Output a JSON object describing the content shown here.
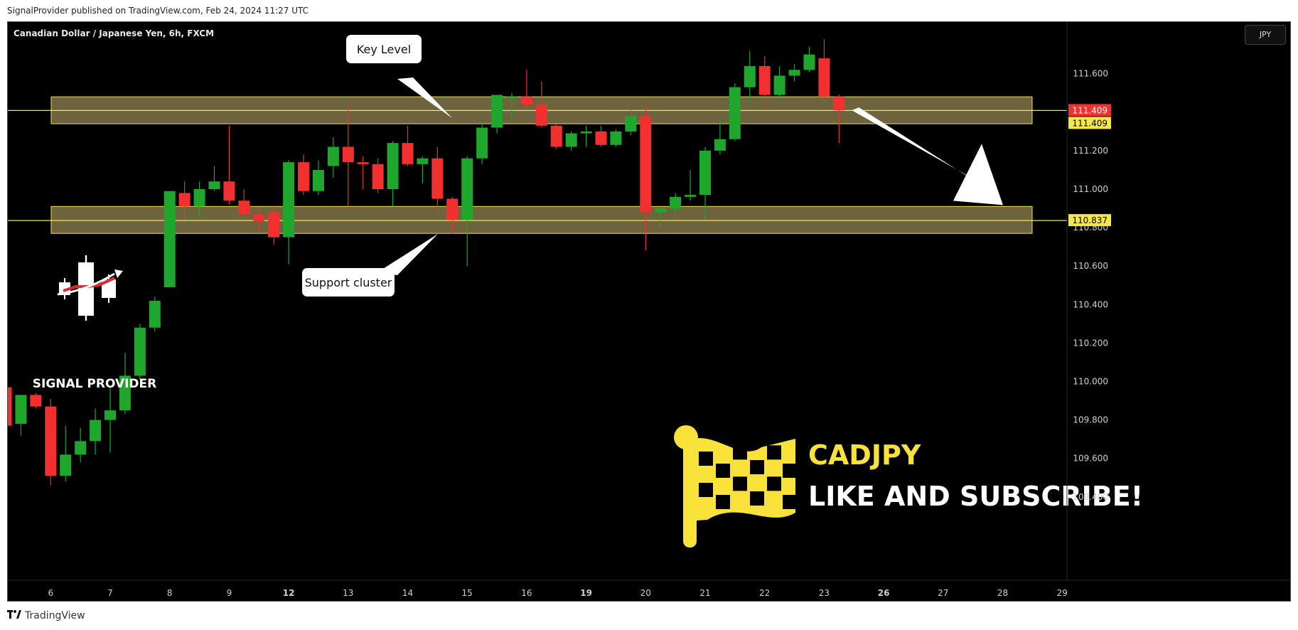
{
  "publication": "SignalProvider published on TradingView.com, Feb 24, 2024 11:27 UTC",
  "footer": {
    "brand": "TradingView",
    "logo_icon": "tradingview-logo-icon"
  },
  "watermark": {
    "brand_text": "SIGNAL PROVIDER",
    "icon": "candlestick-logo-icon"
  },
  "promo": {
    "pair": "CADJPY",
    "cta": "LIKE AND SUBSCRIBE!",
    "icon": "checkered-flag-icon"
  },
  "colors": {
    "up": "#1ea62d",
    "down": "#f23030",
    "zone_fill": "#857a4a",
    "zone_border": "#f2e24a",
    "price_red": "#f23030",
    "price_yellow": "#f5e64a",
    "flag": "#f8e23a"
  },
  "chart_data": {
    "type": "candlestick",
    "title": "Canadian Dollar / Japanese Yen, 6h, FXCM",
    "currency": "JPY",
    "x_ticks": [
      {
        "label": "6",
        "bold": false
      },
      {
        "label": "7",
        "bold": false
      },
      {
        "label": "8",
        "bold": false
      },
      {
        "label": "9",
        "bold": false
      },
      {
        "label": "12",
        "bold": true
      },
      {
        "label": "13",
        "bold": false
      },
      {
        "label": "14",
        "bold": false
      },
      {
        "label": "15",
        "bold": false
      },
      {
        "label": "16",
        "bold": false
      },
      {
        "label": "19",
        "bold": true
      },
      {
        "label": "20",
        "bold": false
      },
      {
        "label": "21",
        "bold": false
      },
      {
        "label": "22",
        "bold": false
      },
      {
        "label": "23",
        "bold": false
      },
      {
        "label": "26",
        "bold": true
      },
      {
        "label": "27",
        "bold": false
      },
      {
        "label": "28",
        "bold": false
      },
      {
        "label": "29",
        "bold": false
      }
    ],
    "y_ticks": [
      "111.600",
      "111.400",
      "111.200",
      "111.000",
      "110.800",
      "110.600",
      "110.400",
      "110.200",
      "110.000",
      "109.800",
      "109.600",
      "109.400"
    ],
    "y_tick_values": [
      111.6,
      111.4,
      111.2,
      111.0,
      110.8,
      110.6,
      110.4,
      110.2,
      110.0,
      109.8,
      109.6,
      109.4
    ],
    "ylim": [
      109.39,
      111.81
    ],
    "price_labels": [
      {
        "text": "111.409",
        "value": 111.409,
        "style": "red"
      },
      {
        "text": "111.409",
        "value": 111.409,
        "style": "yellow",
        "stack": true
      },
      {
        "text": "110.837",
        "value": 110.837,
        "style": "yellow"
      }
    ],
    "horizontal_lines": [
      111.409,
      110.837
    ],
    "zones": [
      {
        "name": "Key Level",
        "low": 111.34,
        "high": 111.48
      },
      {
        "name": "Support cluster",
        "low": 110.77,
        "high": 110.91
      }
    ],
    "annotations": [
      {
        "text": "Key Level",
        "type": "callout"
      },
      {
        "text": "Support cluster",
        "type": "callout"
      }
    ],
    "projection_arrow": {
      "from_day": 25.6,
      "from_price": 111.41,
      "to_day": 28.0,
      "to_price": 110.91
    },
    "candles": [
      {
        "t": 5.0,
        "o": 110.1,
        "h": 110.11,
        "l": 109.99,
        "c": 109.97
      },
      {
        "t": 5.25,
        "o": 109.97,
        "h": 110.0,
        "l": 109.76,
        "c": 109.77
      },
      {
        "t": 5.5,
        "o": 109.78,
        "h": 109.93,
        "l": 109.72,
        "c": 109.93
      },
      {
        "t": 5.75,
        "o": 109.93,
        "h": 109.94,
        "l": 109.86,
        "c": 109.87
      },
      {
        "t": 6.0,
        "o": 109.87,
        "h": 109.91,
        "l": 109.46,
        "c": 109.51
      },
      {
        "t": 6.25,
        "o": 109.51,
        "h": 109.77,
        "l": 109.48,
        "c": 109.62
      },
      {
        "t": 6.5,
        "o": 109.62,
        "h": 109.76,
        "l": 109.58,
        "c": 109.69
      },
      {
        "t": 6.75,
        "o": 109.69,
        "h": 109.86,
        "l": 109.62,
        "c": 109.8
      },
      {
        "t": 7.0,
        "o": 109.8,
        "h": 109.97,
        "l": 109.63,
        "c": 109.85
      },
      {
        "t": 7.25,
        "o": 109.85,
        "h": 110.15,
        "l": 109.83,
        "c": 110.03
      },
      {
        "t": 7.5,
        "o": 110.03,
        "h": 110.3,
        "l": 110.01,
        "c": 110.28
      },
      {
        "t": 7.75,
        "o": 110.28,
        "h": 110.44,
        "l": 110.26,
        "c": 110.42
      },
      {
        "t": 8.0,
        "o": 110.49,
        "h": 110.99,
        "l": 110.49,
        "c": 110.99
      },
      {
        "t": 8.25,
        "o": 110.98,
        "h": 111.04,
        "l": 110.84,
        "c": 110.91
      },
      {
        "t": 8.5,
        "o": 110.91,
        "h": 111.04,
        "l": 110.86,
        "c": 111.0
      },
      {
        "t": 8.75,
        "o": 111.0,
        "h": 111.12,
        "l": 110.99,
        "c": 111.04
      },
      {
        "t": 9.0,
        "o": 111.04,
        "h": 111.33,
        "l": 110.92,
        "c": 110.94
      },
      {
        "t": 9.25,
        "o": 110.94,
        "h": 111.0,
        "l": 110.86,
        "c": 110.87
      },
      {
        "t": 9.5,
        "o": 110.87,
        "h": 110.9,
        "l": 110.78,
        "c": 110.83
      },
      {
        "t": 9.75,
        "o": 110.88,
        "h": 110.91,
        "l": 110.71,
        "c": 110.75
      },
      {
        "t": 12.0,
        "o": 110.75,
        "h": 111.15,
        "l": 110.61,
        "c": 111.14
      },
      {
        "t": 12.25,
        "o": 111.14,
        "h": 111.18,
        "l": 110.97,
        "c": 110.99
      },
      {
        "t": 12.5,
        "o": 110.99,
        "h": 111.15,
        "l": 110.97,
        "c": 111.1
      },
      {
        "t": 12.75,
        "o": 111.12,
        "h": 111.27,
        "l": 111.06,
        "c": 111.22
      },
      {
        "t": 13.0,
        "o": 111.22,
        "h": 111.44,
        "l": 110.89,
        "c": 111.14
      },
      {
        "t": 13.25,
        "o": 111.14,
        "h": 111.17,
        "l": 111.0,
        "c": 111.13
      },
      {
        "t": 13.5,
        "o": 111.13,
        "h": 111.16,
        "l": 110.98,
        "c": 111.0
      },
      {
        "t": 13.75,
        "o": 111.0,
        "h": 111.25,
        "l": 110.91,
        "c": 111.24
      },
      {
        "t": 14.0,
        "o": 111.24,
        "h": 111.33,
        "l": 111.12,
        "c": 111.13
      },
      {
        "t": 14.25,
        "o": 111.13,
        "h": 111.17,
        "l": 111.03,
        "c": 111.16
      },
      {
        "t": 14.5,
        "o": 111.16,
        "h": 111.22,
        "l": 110.88,
        "c": 110.95
      },
      {
        "t": 14.75,
        "o": 110.95,
        "h": 110.96,
        "l": 110.77,
        "c": 110.84
      },
      {
        "t": 15.0,
        "o": 110.84,
        "h": 111.17,
        "l": 110.6,
        "c": 111.16
      },
      {
        "t": 15.25,
        "o": 111.16,
        "h": 111.35,
        "l": 111.13,
        "c": 111.32
      },
      {
        "t": 15.5,
        "o": 111.32,
        "h": 111.49,
        "l": 111.29,
        "c": 111.49
      },
      {
        "t": 15.75,
        "o": 111.48,
        "h": 111.5,
        "l": 111.37,
        "c": 111.48
      },
      {
        "t": 16.0,
        "o": 111.48,
        "h": 111.62,
        "l": 111.42,
        "c": 111.44
      },
      {
        "t": 16.25,
        "o": 111.44,
        "h": 111.56,
        "l": 111.32,
        "c": 111.33
      },
      {
        "t": 16.5,
        "o": 111.33,
        "h": 111.34,
        "l": 111.21,
        "c": 111.22
      },
      {
        "t": 16.75,
        "o": 111.22,
        "h": 111.3,
        "l": 111.2,
        "c": 111.29
      },
      {
        "t": 19.0,
        "o": 111.29,
        "h": 111.33,
        "l": 111.22,
        "c": 111.3
      },
      {
        "t": 19.25,
        "o": 111.3,
        "h": 111.33,
        "l": 111.22,
        "c": 111.23
      },
      {
        "t": 19.5,
        "o": 111.23,
        "h": 111.31,
        "l": 111.22,
        "c": 111.3
      },
      {
        "t": 19.75,
        "o": 111.3,
        "h": 111.41,
        "l": 111.28,
        "c": 111.38
      },
      {
        "t": 20.0,
        "o": 111.38,
        "h": 111.43,
        "l": 110.68,
        "c": 110.88
      },
      {
        "t": 20.25,
        "o": 110.88,
        "h": 110.91,
        "l": 110.79,
        "c": 110.9
      },
      {
        "t": 20.5,
        "o": 110.9,
        "h": 110.98,
        "l": 110.88,
        "c": 110.96
      },
      {
        "t": 20.75,
        "o": 110.96,
        "h": 111.1,
        "l": 110.94,
        "c": 110.97
      },
      {
        "t": 21.0,
        "o": 110.97,
        "h": 111.22,
        "l": 110.85,
        "c": 111.2
      },
      {
        "t": 21.25,
        "o": 111.2,
        "h": 111.36,
        "l": 111.18,
        "c": 111.26
      },
      {
        "t": 21.5,
        "o": 111.26,
        "h": 111.55,
        "l": 111.25,
        "c": 111.53
      },
      {
        "t": 21.75,
        "o": 111.53,
        "h": 111.72,
        "l": 111.45,
        "c": 111.64
      },
      {
        "t": 22.0,
        "o": 111.64,
        "h": 111.69,
        "l": 111.43,
        "c": 111.49
      },
      {
        "t": 22.25,
        "o": 111.49,
        "h": 111.64,
        "l": 111.47,
        "c": 111.59
      },
      {
        "t": 22.5,
        "o": 111.59,
        "h": 111.65,
        "l": 111.56,
        "c": 111.62
      },
      {
        "t": 22.75,
        "o": 111.62,
        "h": 111.74,
        "l": 111.61,
        "c": 111.7
      },
      {
        "t": 23.0,
        "o": 111.68,
        "h": 111.78,
        "l": 111.45,
        "c": 111.48
      },
      {
        "t": 23.25,
        "o": 111.48,
        "h": 111.49,
        "l": 111.24,
        "c": 111.41
      }
    ]
  }
}
